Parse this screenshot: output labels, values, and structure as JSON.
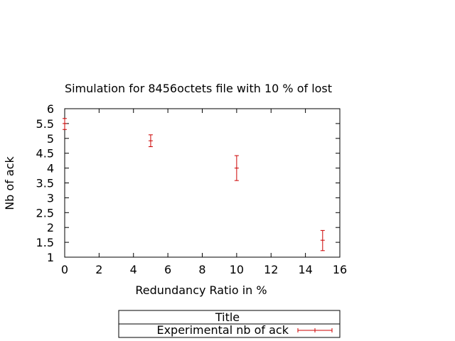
{
  "chart_data": {
    "type": "scatter",
    "title": "Simulation for 8456octets file with 10 % of lost",
    "xlabel": "Redundancy Ratio in %",
    "ylabel": "Nb of ack",
    "xlim": [
      0,
      16
    ],
    "ylim": [
      1,
      6
    ],
    "xticks": [
      "0",
      "2",
      "4",
      "6",
      "8",
      "10",
      "12",
      "14",
      "16"
    ],
    "yticks": [
      "1",
      "1.5",
      "2",
      "2.5",
      "3",
      "3.5",
      "4",
      "4.5",
      "5",
      "5.5",
      "6"
    ],
    "grid": false,
    "series": [
      {
        "name": "Experimental nb of ack",
        "color": "#cc0000",
        "points": [
          {
            "x": 0,
            "y": 5.5,
            "ymin": 5.3,
            "ymax": 5.67
          },
          {
            "x": 5,
            "y": 4.92,
            "ymin": 4.72,
            "ymax": 5.12
          },
          {
            "x": 10,
            "y": 4.0,
            "ymin": 3.58,
            "ymax": 4.42
          },
          {
            "x": 15,
            "y": 1.57,
            "ymin": 1.22,
            "ymax": 1.9
          }
        ]
      }
    ],
    "legend": {
      "title": "Title",
      "position": "bottom-center"
    }
  }
}
